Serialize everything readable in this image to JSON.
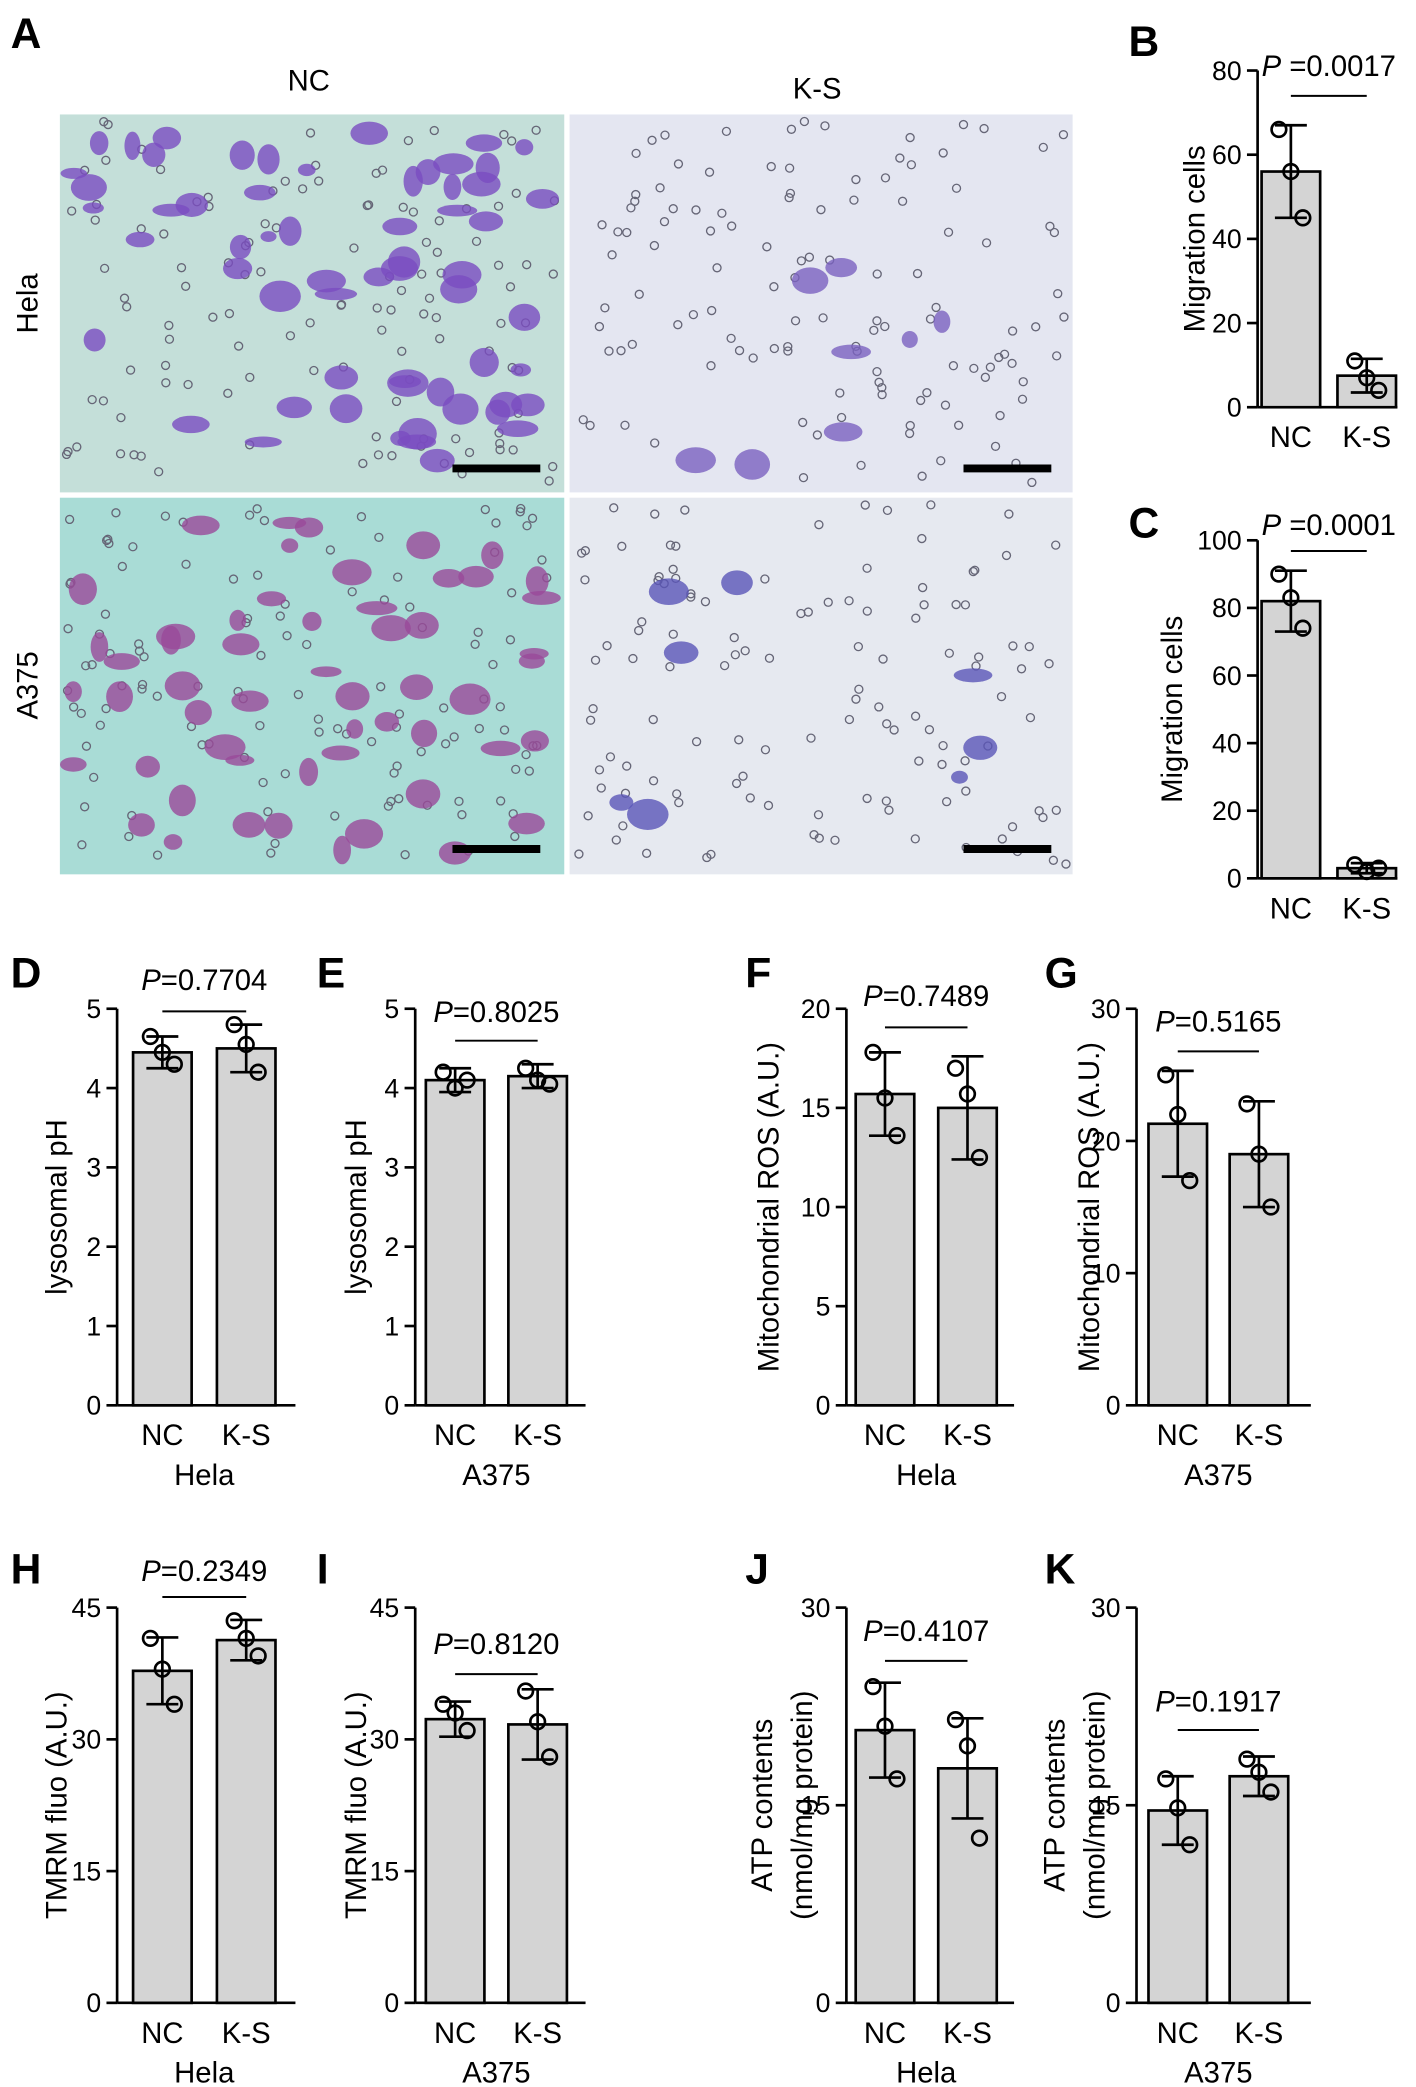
{
  "panel_a": {
    "letter": "A",
    "columns": [
      "NC",
      "K-S"
    ],
    "rows": [
      "Hela",
      "A375"
    ]
  },
  "chart_data": [
    {
      "type": "bar",
      "letter": "B",
      "ylabel": [
        "Migration cells"
      ],
      "categories": [
        "NC",
        "K-S"
      ],
      "values": [
        56,
        7.5
      ],
      "errors": [
        11,
        4
      ],
      "points": [
        [
          66,
          56,
          45
        ],
        [
          11,
          7,
          4
        ]
      ],
      "ylim": [
        0,
        80
      ],
      "yticks": [
        0,
        20,
        40,
        60,
        80
      ],
      "annotation": {
        "symbol": "P",
        "text": " =0.0017"
      },
      "color": "#d4d4d4"
    },
    {
      "type": "bar",
      "letter": "C",
      "ylabel": [
        "Migration cells"
      ],
      "categories": [
        "NC",
        "K-S"
      ],
      "values": [
        82,
        3
      ],
      "errors": [
        9,
        1.5
      ],
      "points": [
        [
          90,
          83,
          74
        ],
        [
          4,
          2,
          3
        ]
      ],
      "ylim": [
        0,
        100
      ],
      "yticks": [
        0,
        20,
        40,
        60,
        80,
        100
      ],
      "annotation": {
        "symbol": "P",
        "text": " =0.0001"
      },
      "color": "#d4d4d4"
    },
    {
      "type": "bar",
      "letter": "D",
      "ylabel": [
        "lysosomal pH"
      ],
      "xlabel": "Hela",
      "categories": [
        "NC",
        "K-S"
      ],
      "values": [
        4.45,
        4.5
      ],
      "errors": [
        0.2,
        0.3
      ],
      "points": [
        [
          4.65,
          4.45,
          4.3
        ],
        [
          4.8,
          4.55,
          4.2
        ]
      ],
      "ylim": [
        0,
        5
      ],
      "yticks": [
        0,
        1,
        2,
        3,
        4,
        5
      ],
      "annotation": {
        "symbol": "P",
        "text": "=0.7704"
      },
      "color": "#d4d4d4"
    },
    {
      "type": "bar",
      "letter": "E",
      "ylabel": [
        "lysosomal pH"
      ],
      "xlabel": "A375",
      "categories": [
        "NC",
        "K-S"
      ],
      "values": [
        4.1,
        4.15
      ],
      "errors": [
        0.15,
        0.15
      ],
      "points": [
        [
          4.2,
          4.0,
          4.1
        ],
        [
          4.25,
          4.1,
          4.05
        ]
      ],
      "ylim": [
        0,
        5
      ],
      "yticks": [
        0,
        1,
        2,
        3,
        4,
        5
      ],
      "annotation": {
        "symbol": "P",
        "text": "=0.8025"
      },
      "color": "#d4d4d4"
    },
    {
      "type": "bar",
      "letter": "F",
      "ylabel": [
        "Mitochondrial ROS (A.U.)"
      ],
      "xlabel": "Hela",
      "categories": [
        "NC",
        "K-S"
      ],
      "values": [
        15.7,
        15
      ],
      "errors": [
        2.1,
        2.6
      ],
      "points": [
        [
          17.8,
          15.5,
          13.6
        ],
        [
          17,
          15.7,
          12.5
        ]
      ],
      "ylim": [
        0,
        20
      ],
      "yticks": [
        0,
        5,
        10,
        15,
        20
      ],
      "annotation": {
        "symbol": "P",
        "text": "=0.7489"
      },
      "color": "#d4d4d4"
    },
    {
      "type": "bar",
      "letter": "G",
      "ylabel": [
        "Mitochondrial ROS (A.U.)"
      ],
      "xlabel": "A375",
      "categories": [
        "NC",
        "K-S"
      ],
      "values": [
        21.3,
        19
      ],
      "errors": [
        4,
        4
      ],
      "points": [
        [
          25,
          22,
          17
        ],
        [
          22.8,
          19,
          15
        ]
      ],
      "ylim": [
        0,
        30
      ],
      "yticks": [
        0,
        10,
        20,
        30
      ],
      "annotation": {
        "symbol": "P",
        "text": "=0.5165"
      },
      "color": "#d4d4d4"
    },
    {
      "type": "bar",
      "letter": "H",
      "ylabel": [
        "TMRM fluo (A.U.)"
      ],
      "xlabel": "Hela",
      "categories": [
        "NC",
        "K-S"
      ],
      "values": [
        37.8,
        41.3
      ],
      "errors": [
        3.8,
        2.3
      ],
      "points": [
        [
          41.5,
          38,
          34
        ],
        [
          43.5,
          41.5,
          39.5
        ]
      ],
      "ylim": [
        0,
        45
      ],
      "yticks": [
        0,
        15,
        30,
        45
      ],
      "annotation": {
        "symbol": "P",
        "text": "=0.2349"
      },
      "color": "#d4d4d4"
    },
    {
      "type": "bar",
      "letter": "I",
      "ylabel": [
        "TMRM fluo (A.U.)"
      ],
      "xlabel": "A375",
      "categories": [
        "NC",
        "K-S"
      ],
      "values": [
        32.3,
        31.7
      ],
      "errors": [
        2,
        4
      ],
      "points": [
        [
          34,
          33,
          31
        ],
        [
          35.5,
          32,
          28
        ]
      ],
      "ylim": [
        0,
        45
      ],
      "yticks": [
        0,
        15,
        30,
        45
      ],
      "annotation": {
        "symbol": "P",
        "text": "=0.8120"
      },
      "color": "#d4d4d4"
    },
    {
      "type": "bar",
      "letter": "J",
      "ylabel": [
        "ATP contents",
        "(nmol/mg protein)"
      ],
      "xlabel": "Hela",
      "categories": [
        "NC",
        "K-S"
      ],
      "values": [
        20.7,
        17.8
      ],
      "errors": [
        3.6,
        3.8
      ],
      "points": [
        [
          24,
          21,
          17
        ],
        [
          21.5,
          19.5,
          12.5
        ]
      ],
      "ylim": [
        0,
        30
      ],
      "yticks": [
        0,
        15,
        30
      ],
      "annotation": {
        "symbol": "P",
        "text": "=0.4107"
      },
      "color": "#d4d4d4"
    },
    {
      "type": "bar",
      "letter": "K",
      "ylabel": [
        "ATP contents",
        "(nmol/mg protein)"
      ],
      "xlabel": "A375",
      "categories": [
        "NC",
        "K-S"
      ],
      "values": [
        14.6,
        17.2
      ],
      "errors": [
        2.6,
        1.5
      ],
      "points": [
        [
          17,
          14.8,
          12
        ],
        [
          18.5,
          17.5,
          16
        ]
      ],
      "ylim": [
        0,
        30
      ],
      "yticks": [
        0,
        15,
        30
      ],
      "annotation": {
        "symbol": "P",
        "text": "=0.1917"
      },
      "color": "#d4d4d4"
    }
  ]
}
